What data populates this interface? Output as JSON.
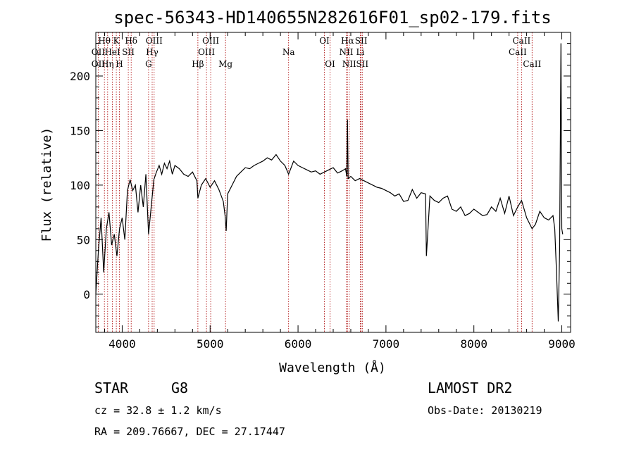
{
  "chart_data": {
    "type": "line",
    "title": "spec-56343-HD140655N282616F01_sp02-179.fits",
    "xlabel": "Wavelength (Å)",
    "ylabel": "Flux (relative)",
    "xlim": [
      3700,
      9100
    ],
    "ylim": [
      -35,
      240
    ],
    "x_ticks": [
      4000,
      5000,
      6000,
      7000,
      8000,
      9000
    ],
    "y_ticks": [
      0,
      50,
      100,
      150,
      200
    ],
    "grid": false,
    "series": [
      {
        "color": "#000000",
        "x": [
          3700,
          3730,
          3760,
          3790,
          3820,
          3850,
          3880,
          3910,
          3940,
          3970,
          4000,
          4030,
          4060,
          4090,
          4120,
          4150,
          4180,
          4210,
          4240,
          4270,
          4300,
          4330,
          4360,
          4390,
          4420,
          4450,
          4480,
          4510,
          4540,
          4570,
          4600,
          4650,
          4700,
          4750,
          4800,
          4850,
          4861,
          4900,
          4950,
          5000,
          5050,
          5100,
          5150,
          5170,
          5183,
          5200,
          5250,
          5300,
          5350,
          5400,
          5450,
          5500,
          5550,
          5600,
          5650,
          5700,
          5750,
          5800,
          5850,
          5893,
          5950,
          6000,
          6050,
          6100,
          6150,
          6200,
          6250,
          6300,
          6350,
          6400,
          6450,
          6500,
          6540,
          6555,
          6563,
          6570,
          6600,
          6650,
          6700,
          6750,
          6800,
          6850,
          6900,
          6950,
          7000,
          7050,
          7100,
          7150,
          7200,
          7250,
          7300,
          7350,
          7400,
          7450,
          7460,
          7500,
          7550,
          7600,
          7650,
          7700,
          7750,
          7800,
          7850,
          7900,
          7950,
          8000,
          8050,
          8100,
          8150,
          8200,
          8250,
          8300,
          8350,
          8400,
          8450,
          8498,
          8542,
          8600,
          8662,
          8700,
          8750,
          8800,
          8850,
          8900,
          8920,
          8940,
          8960,
          8975,
          8990,
          9000,
          9010
        ],
        "y": [
          0,
          40,
          70,
          20,
          60,
          75,
          45,
          55,
          35,
          60,
          70,
          50,
          95,
          105,
          95,
          100,
          75,
          100,
          80,
          110,
          55,
          80,
          105,
          112,
          118,
          110,
          120,
          115,
          122,
          110,
          118,
          115,
          110,
          108,
          112,
          104,
          88,
          100,
          106,
          98,
          104,
          96,
          85,
          72,
          58,
          92,
          100,
          108,
          112,
          116,
          115,
          118,
          120,
          122,
          125,
          123,
          128,
          122,
          118,
          110,
          122,
          118,
          116,
          114,
          112,
          113,
          110,
          112,
          114,
          116,
          111,
          113,
          115,
          108,
          160,
          106,
          108,
          104,
          106,
          104,
          102,
          100,
          98,
          97,
          95,
          93,
          90,
          92,
          85,
          86,
          96,
          88,
          93,
          92,
          35,
          90,
          86,
          84,
          88,
          90,
          78,
          76,
          80,
          72,
          74,
          78,
          75,
          72,
          73,
          80,
          76,
          88,
          74,
          90,
          72,
          80,
          86,
          70,
          60,
          64,
          76,
          70,
          68,
          72,
          60,
          20,
          -25,
          40,
          230,
          60,
          55
        ]
      }
    ],
    "line_labels": [
      {
        "text": "Hθ",
        "wave": 3798,
        "row": 1
      },
      {
        "text": "K",
        "wave": 3933,
        "row": 1
      },
      {
        "text": "Hδ",
        "wave": 4102,
        "row": 1
      },
      {
        "text": "OIII",
        "wave": 4363,
        "row": 1
      },
      {
        "text": "OIII",
        "wave": 5007,
        "row": 1
      },
      {
        "text": "OI",
        "wave": 6300,
        "row": 1
      },
      {
        "text": "Hα",
        "wave": 6563,
        "row": 1
      },
      {
        "text": "SII",
        "wave": 6717,
        "row": 1
      },
      {
        "text": "CaII",
        "wave": 8542,
        "row": 1
      },
      {
        "text": "OII",
        "wave": 3727,
        "row": 2
      },
      {
        "text": "HeI",
        "wave": 3889,
        "row": 2
      },
      {
        "text": "SII",
        "wave": 4069,
        "row": 2
      },
      {
        "text": "Hγ",
        "wave": 4341,
        "row": 2
      },
      {
        "text": "OIII",
        "wave": 4959,
        "row": 2
      },
      {
        "text": "Na",
        "wave": 5893,
        "row": 2
      },
      {
        "text": "NII",
        "wave": 6548,
        "row": 2
      },
      {
        "text": "Li",
        "wave": 6708,
        "row": 2
      },
      {
        "text": "CaII",
        "wave": 8498,
        "row": 2
      },
      {
        "text": "OII",
        "wave": 3727,
        "row": 3
      },
      {
        "text": "Hη",
        "wave": 3835,
        "row": 3
      },
      {
        "text": "H",
        "wave": 3968,
        "row": 3
      },
      {
        "text": "G",
        "wave": 4300,
        "row": 3
      },
      {
        "text": "Hβ",
        "wave": 4861,
        "row": 3
      },
      {
        "text": "Mg",
        "wave": 5175,
        "row": 3
      },
      {
        "text": "OI",
        "wave": 6364,
        "row": 3
      },
      {
        "text": "NII",
        "wave": 6583,
        "row": 3
      },
      {
        "text": "SII",
        "wave": 6731,
        "row": 3
      },
      {
        "text": "CaII",
        "wave": 8662,
        "row": 3
      }
    ],
    "line_positions": [
      3727,
      3798,
      3835,
      3889,
      3933,
      3968,
      4069,
      4102,
      4300,
      4341,
      4363,
      4861,
      4959,
      5007,
      5175,
      5893,
      6300,
      6364,
      6548,
      6563,
      6583,
      6708,
      6717,
      6731,
      8498,
      8542,
      8662
    ],
    "line_color": "#aa0000"
  },
  "info": {
    "object_class": "STAR",
    "subclass": "G8",
    "survey": "LAMOST DR2",
    "cz": "cz = 32.8 ± 1.2 km/s",
    "obs_date": "Obs-Date: 20130219",
    "coords": "RA = 209.76667, DEC =  27.17447"
  }
}
